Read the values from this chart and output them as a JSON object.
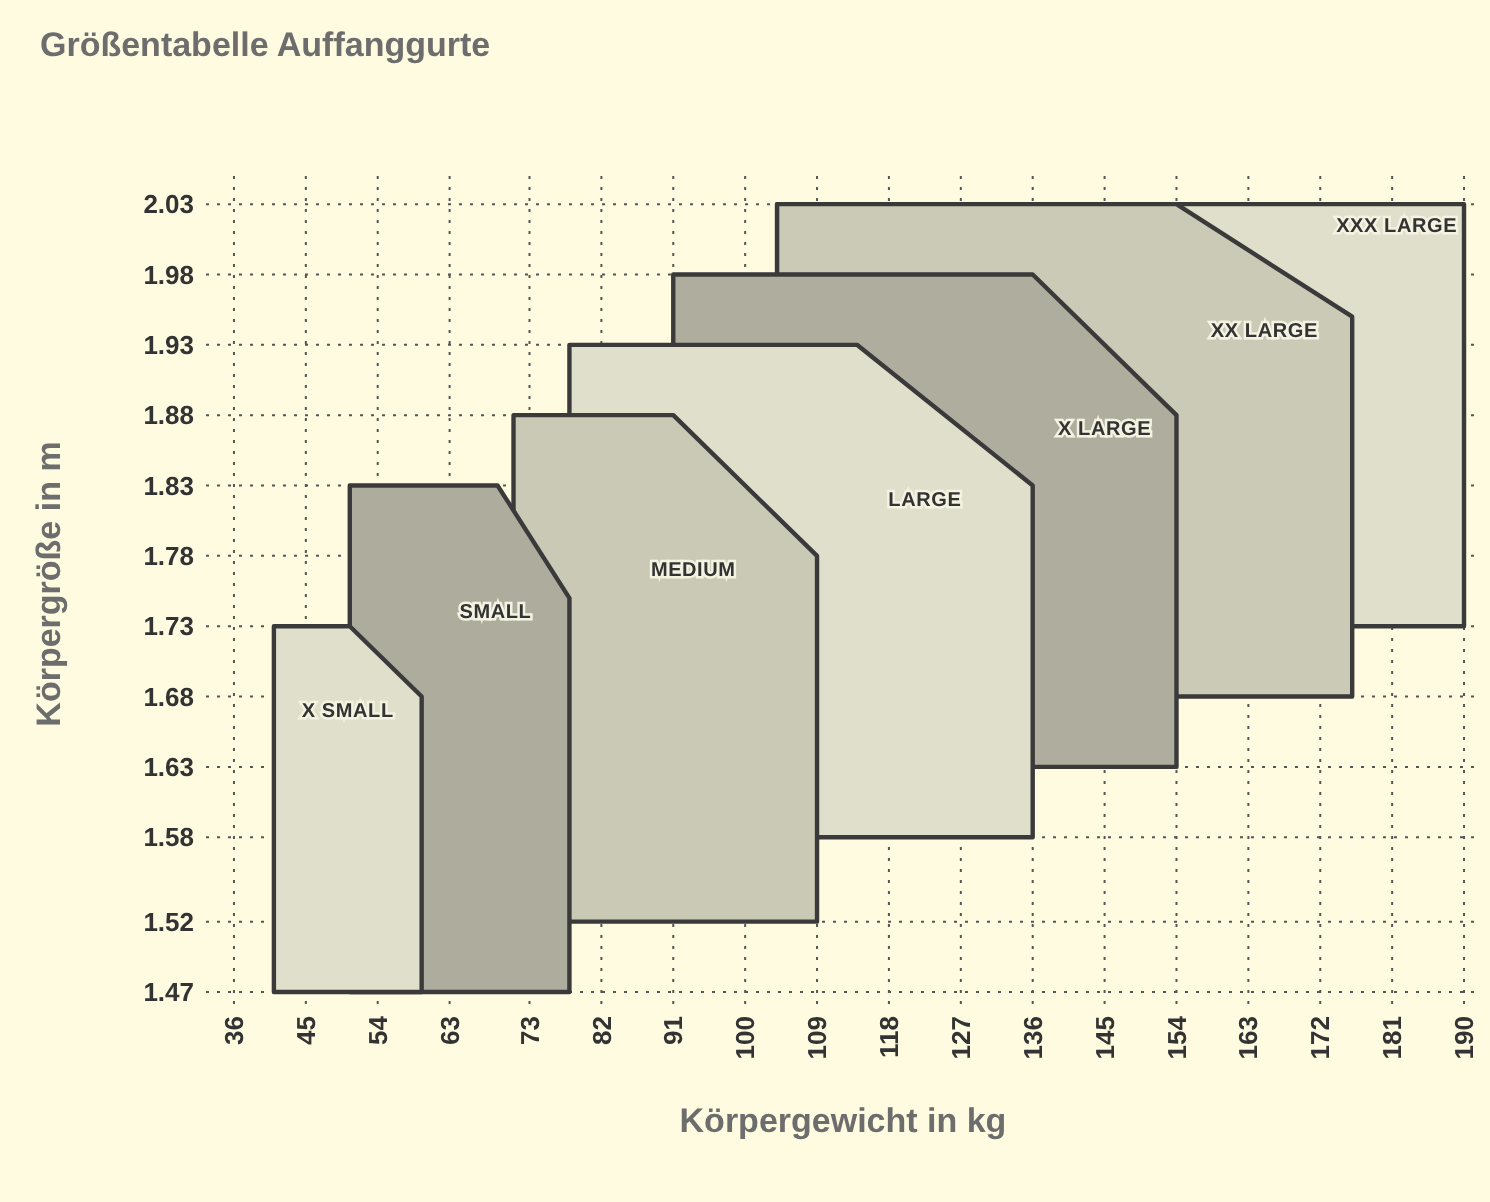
{
  "chart_data": {
    "type": "area",
    "title": "Größentabelle Auffanggurte",
    "xlabel": "Körpergewicht in kg",
    "ylabel": "Körpergröße in m",
    "xlim": [
      32.5,
      192
    ],
    "ylim": [
      1.47,
      2.05
    ],
    "xticks": [
      36,
      45,
      54,
      63,
      73,
      82,
      91,
      100,
      109,
      118,
      127,
      136,
      145,
      154,
      163,
      172,
      181,
      190
    ],
    "yticks": [
      1.47,
      1.52,
      1.58,
      1.63,
      1.68,
      1.73,
      1.78,
      1.83,
      1.88,
      1.93,
      1.98,
      2.03
    ],
    "grid": true,
    "series": [
      {
        "name": "X SMALL",
        "color": "#e0dfcb",
        "x": [
          41,
          50.5,
          59.5,
          59.5
        ],
        "values": [
          1.73,
          1.73,
          1.68,
          1.47
        ]
      },
      {
        "name": "SMALL",
        "color": "#adac9d",
        "x": [
          50.5,
          69,
          78,
          78
        ],
        "values": [
          1.83,
          1.83,
          1.75,
          1.47
        ]
      },
      {
        "name": "MEDIUM",
        "color": "#cac9b5",
        "x": [
          71,
          91,
          109,
          109
        ],
        "values": [
          1.88,
          1.88,
          1.78,
          1.52
        ]
      },
      {
        "name": "LARGE",
        "color": "#e0dfcb",
        "x": [
          78,
          114,
          136,
          136
        ],
        "values": [
          1.93,
          1.93,
          1.83,
          1.58
        ]
      },
      {
        "name": "X LARGE",
        "color": "#afae9e",
        "x": [
          91,
          136,
          154,
          154
        ],
        "values": [
          1.98,
          1.98,
          1.88,
          1.63
        ]
      },
      {
        "name": "XX LARGE",
        "color": "#cbcab6",
        "x": [
          104,
          154,
          176,
          176
        ],
        "values": [
          2.03,
          2.03,
          1.95,
          1.68
        ]
      },
      {
        "name": "XXX LARGE",
        "color": "#e0dfcb",
        "x": [
          104,
          190,
          190
        ],
        "values": [
          2.03,
          2.03,
          1.73
        ]
      }
    ]
  }
}
